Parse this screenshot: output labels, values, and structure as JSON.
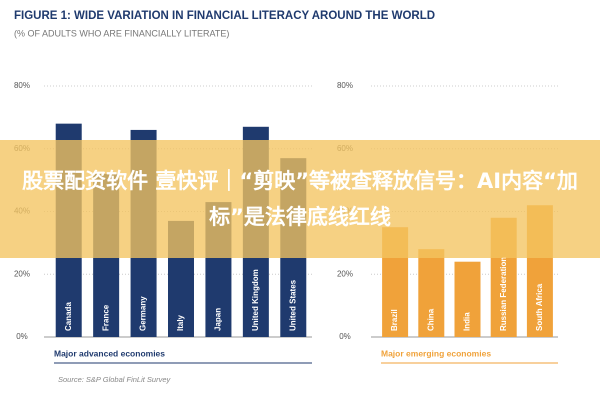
{
  "title": "FIGURE 1: WIDE VARIATION IN FINANCIAL LITERACY AROUND THE WORLD",
  "subtitle": "(% OF ADULTS WHO ARE FINANCIALLY LITERATE)",
  "source": "Source: S&P Global FinLit Survey",
  "banner": "股票配资软件 壹快评｜“剪映”等被查释放信号：AI内容“加标”是法律底线红线",
  "chart_data": [
    {
      "type": "bar",
      "xlabel": "Major advanced economies",
      "color": "#1f3a6e",
      "categories": [
        "Canada",
        "France",
        "Germany",
        "Italy",
        "Japan",
        "United Kingdom",
        "United States"
      ],
      "values": [
        68,
        52,
        66,
        37,
        43,
        67,
        57
      ],
      "ylim": [
        0,
        80
      ],
      "yticks": [
        {
          "value": 0,
          "label": "0%"
        },
        {
          "value": 20,
          "label": "20%"
        },
        {
          "value": 40,
          "label": "40%"
        },
        {
          "value": 60,
          "label": "60%"
        },
        {
          "value": 80,
          "label": "80%"
        }
      ],
      "grid": true
    },
    {
      "type": "bar",
      "xlabel": "Major emerging economies",
      "color": "#f0a23a",
      "categories": [
        "Brazil",
        "China",
        "India",
        "Russian Federation",
        "South Africa"
      ],
      "values": [
        35,
        28,
        24,
        38,
        42
      ],
      "ylim": [
        0,
        80
      ],
      "yticks": [
        {
          "value": 0,
          "label": "0%"
        },
        {
          "value": 20,
          "label": "20%"
        },
        {
          "value": 40,
          "label": "40%"
        },
        {
          "value": 60,
          "label": "60%"
        },
        {
          "value": 80,
          "label": "80%"
        }
      ],
      "grid": true
    }
  ]
}
